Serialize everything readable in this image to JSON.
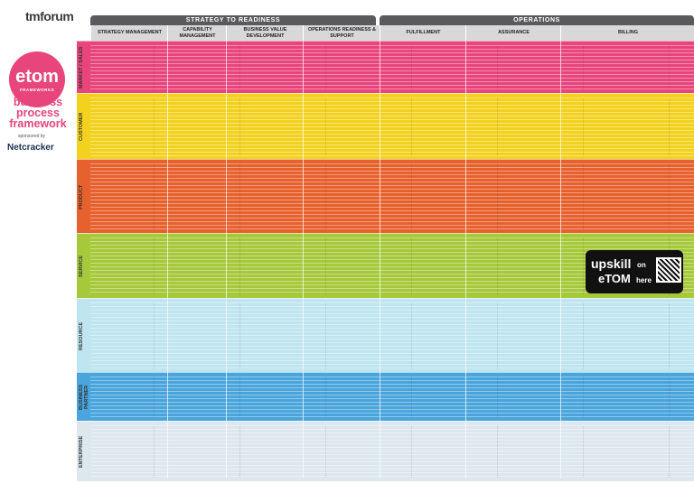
{
  "header": {
    "brand": "tmforum",
    "groups": [
      "STRATEGY TO READINESS",
      "OPERATIONS"
    ]
  },
  "columns": [
    "STRATEGY MANAGEMENT",
    "CAPABILITY MANAGEMENT",
    "BUSINESS VALUE DEVELOPMENT",
    "OPERATIONS READINESS & SUPPORT",
    "FULFILLMENT",
    "ASSURANCE",
    "BILLING"
  ],
  "rows": [
    "MARKET / SALES",
    "CUSTOMER",
    "PRODUCT",
    "SERVICE",
    "RESOURCE",
    "BUSINESS PARTNER",
    "ENTERPRISE"
  ],
  "sidebar": {
    "title": "etom",
    "tag": "FRAMEWORKS",
    "subtitle": "business process framework",
    "sponsor_label": "sponsored by",
    "sponsor": "Netcracker"
  },
  "promo": {
    "line1": "upskill",
    "line2": "on",
    "line3": "eTOM",
    "line4": "here"
  }
}
